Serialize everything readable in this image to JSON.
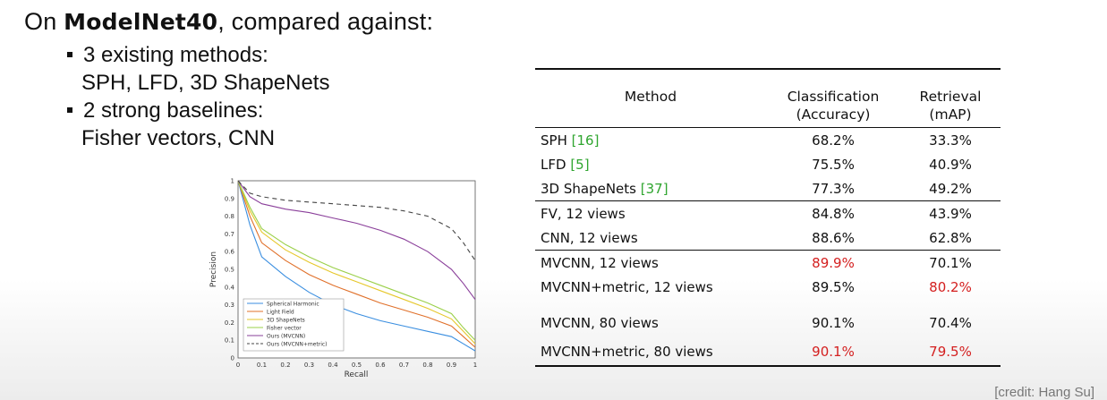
{
  "slide": {
    "title_prefix": "On ",
    "title_bold": "ModelNet40",
    "title_suffix": ", compared against:",
    "bullets": [
      {
        "head": "3 existing methods:",
        "sub": "SPH, LFD, 3D ShapeNets"
      },
      {
        "head": "2 strong baselines:",
        "sub": "Fisher vectors, CNN"
      }
    ],
    "credit": "[credit: Hang Su]"
  },
  "table": {
    "headers": {
      "method": "Method",
      "cls_1": "Classification",
      "cls_2": "(Accuracy)",
      "ret_1": "Retrieval",
      "ret_2": "(mAP)"
    },
    "rows": [
      {
        "method": "SPH ",
        "ref": "[16]",
        "cls": "68.2%",
        "ret": "33.3%"
      },
      {
        "method": "LFD ",
        "ref": "[5]",
        "cls": "75.5%",
        "ret": "40.9%"
      },
      {
        "method": "3D ShapeNets ",
        "ref": "[37]",
        "cls": "77.3%",
        "ret": "49.2%"
      },
      {
        "method": "FV, 12 views",
        "cls": "84.8%",
        "ret": "43.9%"
      },
      {
        "method": "CNN, 12 views",
        "cls": "88.6%",
        "ret": "62.8%"
      },
      {
        "method": "MVCNN, 12 views",
        "cls": "89.9%",
        "ret": "70.1%"
      },
      {
        "method": "MVCNN+metric, 12 views",
        "cls": "89.5%",
        "ret": "80.2%"
      },
      {
        "method": "MVCNN, 80 views",
        "cls": "90.1%",
        "ret": "70.4%"
      },
      {
        "method": "MVCNN+metric, 80 views",
        "cls": "90.1%",
        "ret": "79.5%"
      }
    ],
    "highlight_color": "#d42020",
    "ref_color": "#2fa52f"
  },
  "chart_data": {
    "type": "line",
    "title": "",
    "xlabel": "Recall",
    "ylabel": "Precision",
    "xlim": [
      0,
      1
    ],
    "ylim": [
      0,
      1
    ],
    "x_ticks": [
      "0",
      "0.1",
      "0.2",
      "0.3",
      "0.4",
      "0.5",
      "0.6",
      "0.7",
      "0.8",
      "0.9",
      "1"
    ],
    "y_ticks": [
      "0",
      "0.1",
      "0.2",
      "0.3",
      "0.4",
      "0.5",
      "0.6",
      "0.7",
      "0.8",
      "0.9",
      "1"
    ],
    "legend_position": "bottom-left",
    "series": [
      {
        "name": "Spherical Harmonic",
        "color": "#3a8ee0",
        "dash": "",
        "x": [
          0,
          0.05,
          0.1,
          0.2,
          0.3,
          0.4,
          0.5,
          0.6,
          0.7,
          0.8,
          0.9,
          0.95,
          1
        ],
        "y": [
          1.0,
          0.75,
          0.57,
          0.46,
          0.37,
          0.3,
          0.25,
          0.21,
          0.18,
          0.15,
          0.12,
          0.08,
          0.04
        ]
      },
      {
        "name": "Light Field",
        "color": "#e0702a",
        "dash": "",
        "x": [
          0,
          0.05,
          0.1,
          0.2,
          0.3,
          0.4,
          0.5,
          0.6,
          0.7,
          0.8,
          0.9,
          0.95,
          1
        ],
        "y": [
          1.0,
          0.8,
          0.65,
          0.55,
          0.47,
          0.41,
          0.36,
          0.31,
          0.27,
          0.23,
          0.18,
          0.12,
          0.06
        ]
      },
      {
        "name": "3D ShapeNets",
        "color": "#e6c72a",
        "dash": "",
        "x": [
          0,
          0.05,
          0.1,
          0.2,
          0.3,
          0.4,
          0.5,
          0.6,
          0.7,
          0.8,
          0.9,
          0.95,
          1
        ],
        "y": [
          1.0,
          0.83,
          0.71,
          0.61,
          0.54,
          0.48,
          0.43,
          0.38,
          0.33,
          0.28,
          0.22,
          0.15,
          0.08
        ]
      },
      {
        "name": "Fisher vector",
        "color": "#9bd04a",
        "dash": "",
        "x": [
          0,
          0.05,
          0.1,
          0.2,
          0.3,
          0.4,
          0.5,
          0.6,
          0.7,
          0.8,
          0.9,
          0.95,
          1
        ],
        "y": [
          1.0,
          0.85,
          0.73,
          0.64,
          0.57,
          0.51,
          0.46,
          0.41,
          0.36,
          0.31,
          0.25,
          0.17,
          0.1
        ]
      },
      {
        "name": "Ours (MVCNN)",
        "color": "#8a3f9a",
        "dash": "",
        "x": [
          0,
          0.05,
          0.1,
          0.2,
          0.3,
          0.4,
          0.5,
          0.6,
          0.7,
          0.8,
          0.9,
          0.95,
          1
        ],
        "y": [
          1.0,
          0.91,
          0.87,
          0.84,
          0.82,
          0.79,
          0.76,
          0.72,
          0.67,
          0.6,
          0.5,
          0.42,
          0.33
        ]
      },
      {
        "name": "Ours (MVCNN+metric)",
        "color": "#444444",
        "dash": "5,4",
        "x": [
          0,
          0.05,
          0.1,
          0.2,
          0.3,
          0.4,
          0.5,
          0.6,
          0.7,
          0.8,
          0.9,
          0.95,
          1
        ],
        "y": [
          1.0,
          0.93,
          0.91,
          0.89,
          0.88,
          0.87,
          0.86,
          0.85,
          0.83,
          0.8,
          0.73,
          0.65,
          0.55
        ]
      }
    ]
  }
}
